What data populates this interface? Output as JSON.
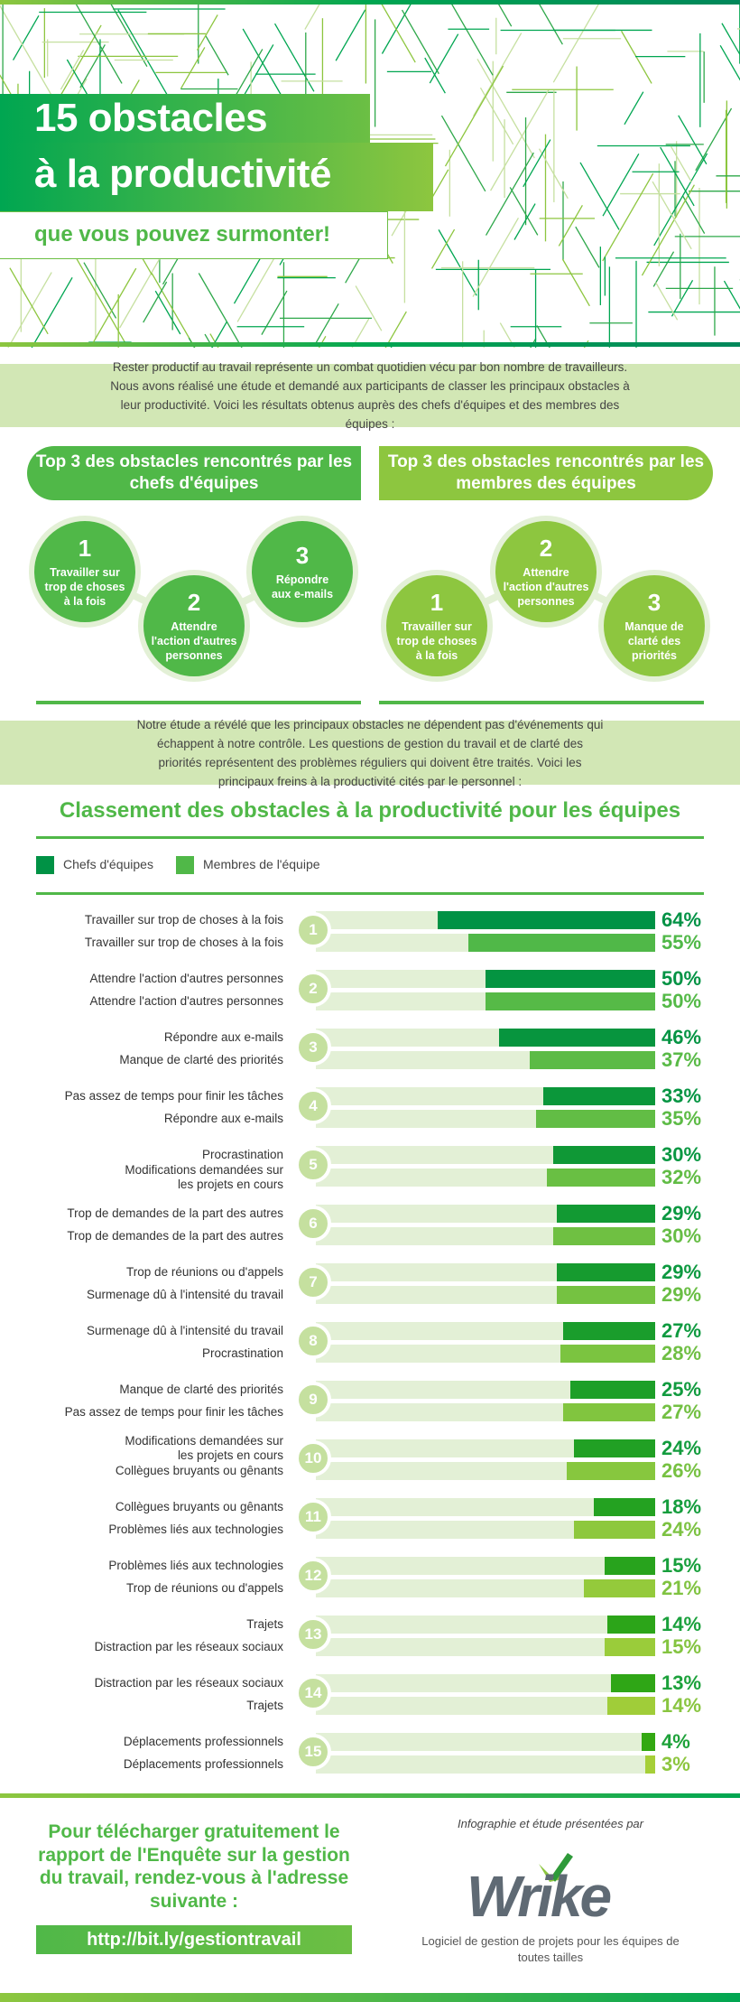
{
  "header": {
    "title_line1": "15 obstacles",
    "title_line2": "à la productivité",
    "subtitle": "que vous pouvez surmonter!"
  },
  "intro": "Rester productif au travail représente un combat quotidien vécu par bon nombre de travailleurs. Nous avons réalisé une étude et demandé aux participants de classer les principaux obstacles à leur productivité. Voici les résultats obtenus auprès des chefs d'équipes et des membres des équipes :",
  "top3_leaders": {
    "title": "Top 3 des obstacles rencontrés par les chefs d'équipes",
    "items": [
      {
        "rank": "1",
        "text": "Travailler sur trop de choses à la fois"
      },
      {
        "rank": "2",
        "text": "Attendre l'action d'autres personnes"
      },
      {
        "rank": "3",
        "text": "Répondre aux e-mails"
      }
    ]
  },
  "top3_members": {
    "title": "Top 3 des obstacles rencontrés par les membres des équipes",
    "items": [
      {
        "rank": "1",
        "text": "Travailler sur trop de choses à la fois"
      },
      {
        "rank": "2",
        "text": "Attendre l'action d'autres personnes"
      },
      {
        "rank": "3",
        "text": "Manque de clarté des priorités"
      }
    ]
  },
  "study_text": "Notre étude a révélé que les principaux obstacles ne dépendent pas d'événements qui échappent à notre contrôle. Les questions de gestion du travail et de clarté des priorités représentent des problèmes réguliers qui doivent être traités. Voici les principaux freins à la productivité cités par le personnel :",
  "colors": {
    "leaders": "#009245",
    "members": "#50b848",
    "track": "#e3f0d6",
    "band": "#d2e7b5",
    "accent": "#50b848",
    "lime": "#8dc63f"
  },
  "chart_data": {
    "type": "bar",
    "title": "Classement des obstacles à la productivité pour les équipes",
    "legend": [
      "Chefs d'équipes",
      "Membres de l'équipe"
    ],
    "legend_position": "top-left",
    "unit": "%",
    "xlim": [
      0,
      100
    ],
    "rows": [
      {
        "rank": "1",
        "leader_label": "Travailler sur trop de choses à la fois",
        "leader_value": 64,
        "member_label": "Travailler sur trop de choses à la fois",
        "member_value": 55
      },
      {
        "rank": "2",
        "leader_label": "Attendre l'action d'autres personnes",
        "leader_value": 50,
        "member_label": "Attendre l'action d'autres personnes",
        "member_value": 50
      },
      {
        "rank": "3",
        "leader_label": "Répondre aux e-mails",
        "leader_value": 46,
        "member_label": "Manque de clarté des priorités",
        "member_value": 37
      },
      {
        "rank": "4",
        "leader_label": "Pas assez de temps pour finir les tâches",
        "leader_value": 33,
        "member_label": "Répondre aux e-mails",
        "member_value": 35
      },
      {
        "rank": "5",
        "leader_label": "Procrastination",
        "leader_value": 30,
        "member_label": "Modifications demandées sur les projets en cours",
        "member_value": 32
      },
      {
        "rank": "6",
        "leader_label": "Trop de demandes de la part des autres",
        "leader_value": 29,
        "member_label": "Trop de demandes de la part des autres",
        "member_value": 30
      },
      {
        "rank": "7",
        "leader_label": "Trop de réunions ou d'appels",
        "leader_value": 29,
        "member_label": "Surmenage dû à l'intensité du travail",
        "member_value": 29
      },
      {
        "rank": "8",
        "leader_label": "Surmenage dû à l'intensité du travail",
        "leader_value": 27,
        "member_label": "Procrastination",
        "member_value": 28
      },
      {
        "rank": "9",
        "leader_label": "Manque de clarté des priorités",
        "leader_value": 25,
        "member_label": "Pas assez de temps pour finir les tâches",
        "member_value": 27
      },
      {
        "rank": "10",
        "leader_label": "Modifications demandées sur les projets en cours",
        "leader_value": 24,
        "member_label": "Collègues bruyants ou gênants",
        "member_value": 26
      },
      {
        "rank": "11",
        "leader_label": "Collègues bruyants ou gênants",
        "leader_value": 18,
        "member_label": "Problèmes liés aux technologies",
        "member_value": 24
      },
      {
        "rank": "12",
        "leader_label": "Problèmes liés aux technologies",
        "leader_value": 15,
        "member_label": "Trop de réunions ou d'appels",
        "member_value": 21
      },
      {
        "rank": "13",
        "leader_label": "Trajets",
        "leader_value": 14,
        "member_label": "Distraction par les réseaux sociaux",
        "member_value": 15
      },
      {
        "rank": "14",
        "leader_label": "Distraction par les réseaux sociaux",
        "leader_value": 13,
        "member_label": "Trajets",
        "member_value": 14
      },
      {
        "rank": "15",
        "leader_label": "Déplacements professionnels",
        "leader_value": 4,
        "member_label": "Déplacements professionnels",
        "member_value": 3
      }
    ]
  },
  "footer": {
    "cta": "Pour télécharger gratuitement le rapport de l'Enquête sur la gestion du travail, rendez-vous à l'adresse suivante :",
    "url": "http://bit.ly/gestiontravail",
    "presented_by": "Infographie et étude présentées par",
    "logo": "Wrike",
    "tagline": "Logiciel de gestion de projets pour les équipes de toutes tailles"
  }
}
